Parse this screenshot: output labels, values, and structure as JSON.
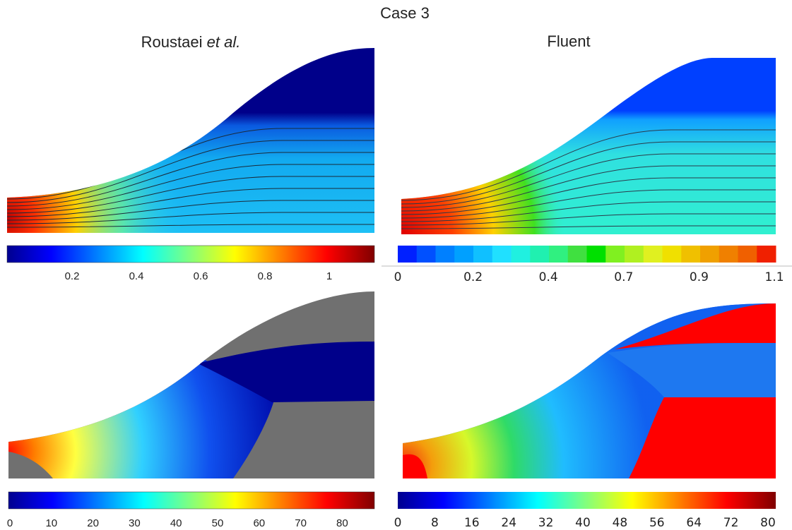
{
  "title": "Case 3",
  "headers": {
    "left": {
      "name": "Roustaei",
      "suffix": "et al."
    },
    "right": "Fluent"
  },
  "colorbars": [
    {
      "ticks": [
        "0.2",
        "0.4",
        "0.6",
        "0.8",
        "1"
      ]
    },
    {
      "ticks": [
        "0",
        "0.2",
        "0.4",
        "0.7",
        "0.9",
        "1.1"
      ]
    },
    {
      "ticks": [
        "0",
        "10",
        "20",
        "30",
        "40",
        "50",
        "60",
        "70",
        "80"
      ]
    },
    {
      "ticks": [
        "0",
        "8",
        "16",
        "24",
        "32",
        "40",
        "48",
        "56",
        "64",
        "72",
        "80"
      ]
    }
  ]
}
